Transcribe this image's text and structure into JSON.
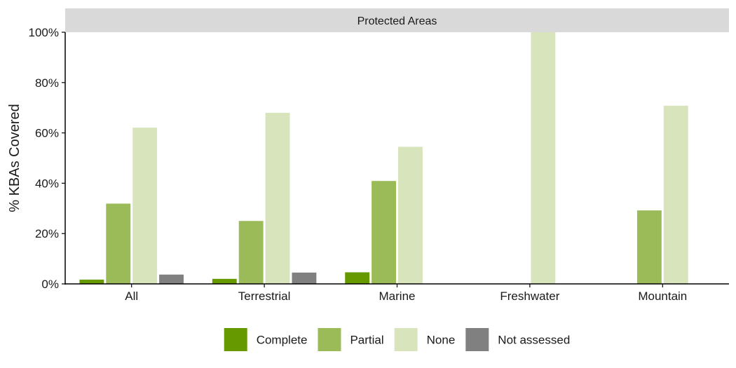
{
  "chart_data": {
    "type": "bar",
    "panel_title": "Protected Areas",
    "ylabel": "% KBAs Covered",
    "xlabel": "",
    "categories": [
      "All",
      "Terrestrial",
      "Marine",
      "Freshwater",
      "Mountain"
    ],
    "ylim": [
      0,
      100
    ],
    "yticks": [
      0,
      20,
      40,
      60,
      80,
      100
    ],
    "ytick_labels": [
      "0%",
      "20%",
      "40%",
      "60%",
      "80%",
      "100%"
    ],
    "grid": false,
    "legend_position": "bottom",
    "series": [
      {
        "name": "Complete",
        "color": "#669900",
        "values": [
          1.7,
          2.0,
          4.6,
          0,
          0
        ]
      },
      {
        "name": "Partial",
        "color": "#9BBB59",
        "values": [
          31.9,
          25.0,
          40.9,
          0,
          29.2
        ]
      },
      {
        "name": "None",
        "color": "#D8E4BC",
        "values": [
          62.1,
          68.0,
          54.5,
          100,
          70.8
        ]
      },
      {
        "name": "Not assessed",
        "color": "#808080",
        "values": [
          3.7,
          4.5,
          0,
          0,
          0
        ]
      }
    ]
  }
}
